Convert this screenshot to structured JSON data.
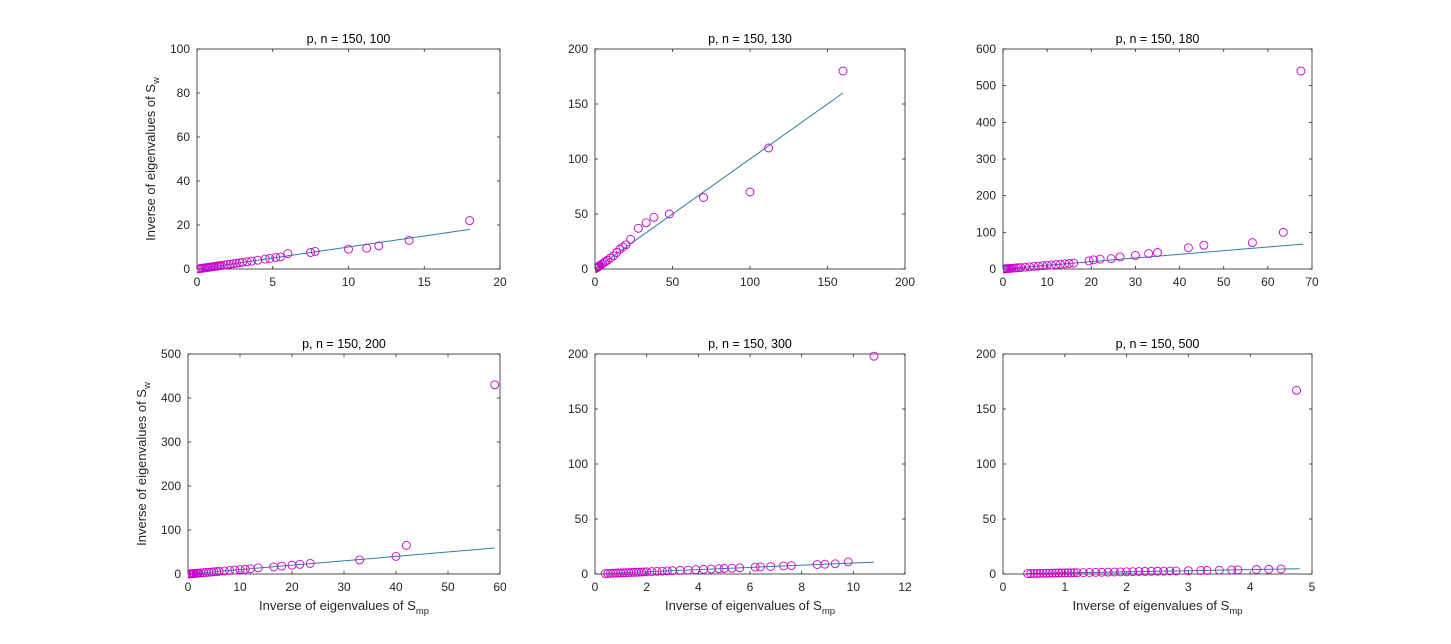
{
  "figure": {
    "xlabel_main": "Inverse of eigenvalues of S",
    "xlabel_sub": "mp",
    "ylabel_main": "Inverse of eigenvalues of S",
    "ylabel_sub": "w"
  },
  "colors": {
    "marker": "#cc00cc",
    "line": "#2a7fa0",
    "axis": "#262626"
  },
  "chart_data": [
    {
      "type": "scatter",
      "title": "p, n = 150, 100",
      "xlim": [
        0,
        20
      ],
      "ylim": [
        0,
        100
      ],
      "xticks": [
        0,
        5,
        10,
        15,
        20
      ],
      "yticks": [
        0,
        20,
        40,
        60,
        80,
        100
      ],
      "show_xlabel": false,
      "show_ylabel": true,
      "fit_line": {
        "x": [
          0,
          18
        ],
        "y": [
          0,
          18
        ]
      },
      "points": {
        "x": [
          0.1,
          0.2,
          0.3,
          0.4,
          0.5,
          0.6,
          0.7,
          0.8,
          0.9,
          1.0,
          1.1,
          1.2,
          1.3,
          1.4,
          1.5,
          1.6,
          1.8,
          2.0,
          2.2,
          2.4,
          2.6,
          2.8,
          3.0,
          3.3,
          3.6,
          4.0,
          4.5,
          4.8,
          5.2,
          5.5,
          6.0,
          7.5,
          7.8,
          10.0,
          11.2,
          12.0,
          14.0,
          18.0
        ],
        "y": [
          0.1,
          0.2,
          0.3,
          0.4,
          0.5,
          0.6,
          0.7,
          0.8,
          0.9,
          1.0,
          1.1,
          1.2,
          1.3,
          1.4,
          1.5,
          1.6,
          1.8,
          2.0,
          2.2,
          2.4,
          2.6,
          2.8,
          3.0,
          3.3,
          3.6,
          4.0,
          4.5,
          4.8,
          5.2,
          5.5,
          7.0,
          7.5,
          8.0,
          9.0,
          9.5,
          10.5,
          13.0,
          22.0
        ]
      }
    },
    {
      "type": "scatter",
      "title": "p, n = 150, 130",
      "xlim": [
        0,
        200
      ],
      "ylim": [
        0,
        200
      ],
      "xticks": [
        0,
        50,
        100,
        150,
        200
      ],
      "yticks": [
        0,
        50,
        100,
        150,
        200
      ],
      "show_xlabel": false,
      "show_ylabel": false,
      "fit_line": {
        "x": [
          0,
          160
        ],
        "y": [
          0,
          160
        ]
      },
      "points": {
        "x": [
          0.5,
          1,
          1.5,
          2,
          2.5,
          3,
          4,
          5,
          6,
          7,
          8,
          10,
          12,
          14,
          16,
          18,
          20,
          23,
          28,
          33,
          38,
          48,
          70,
          100,
          112,
          160
        ],
        "y": [
          0.5,
          1,
          1.5,
          2,
          2.5,
          3,
          4,
          5,
          6,
          7,
          8,
          10,
          12,
          15,
          18,
          20,
          22,
          27,
          37,
          42,
          47,
          50,
          65,
          70,
          110,
          180
        ]
      }
    },
    {
      "type": "scatter",
      "title": "p, n = 150, 180",
      "xlim": [
        0,
        70
      ],
      "ylim": [
        0,
        600
      ],
      "xticks": [
        0,
        10,
        20,
        30,
        40,
        50,
        60,
        70
      ],
      "yticks": [
        0,
        100,
        200,
        300,
        400,
        500,
        600
      ],
      "show_xlabel": false,
      "show_ylabel": false,
      "fit_line": {
        "x": [
          0,
          68
        ],
        "y": [
          0,
          68
        ]
      },
      "points": {
        "x": [
          0.2,
          0.4,
          0.6,
          0.8,
          1,
          1.3,
          1.6,
          2,
          2.5,
          3,
          3.5,
          4,
          5,
          6,
          7,
          8,
          9,
          10,
          11,
          12,
          13,
          14,
          15,
          16,
          19.5,
          20.5,
          22,
          24.5,
          26.5,
          30,
          33,
          35,
          42,
          45.5,
          56.5,
          63.5,
          67.5
        ],
        "y": [
          0.2,
          0.4,
          0.6,
          0.8,
          1,
          1.3,
          1.6,
          2,
          2.5,
          3,
          3.5,
          4,
          5,
          6,
          7,
          8,
          9,
          10,
          11,
          12,
          13,
          14,
          15,
          16,
          22,
          25,
          27,
          28,
          33,
          37,
          42,
          45,
          58,
          65,
          72,
          100,
          540
        ]
      }
    },
    {
      "type": "scatter",
      "title": "p, n = 150, 200",
      "xlim": [
        0,
        60
      ],
      "ylim": [
        0,
        500
      ],
      "xticks": [
        0,
        10,
        20,
        30,
        40,
        50,
        60
      ],
      "yticks": [
        0,
        100,
        200,
        300,
        400,
        500
      ],
      "show_xlabel": true,
      "show_ylabel": true,
      "fit_line": {
        "x": [
          0,
          59
        ],
        "y": [
          0,
          59
        ]
      },
      "points": {
        "x": [
          0.2,
          0.4,
          0.6,
          0.8,
          1,
          1.2,
          1.5,
          1.8,
          2,
          2.5,
          3,
          3.5,
          4,
          4.5,
          5,
          5.5,
          6,
          7,
          8,
          9,
          10,
          11,
          12,
          13.5,
          16.5,
          18,
          20,
          21.5,
          23.5,
          33,
          40,
          42,
          59
        ],
        "y": [
          0.2,
          0.4,
          0.6,
          0.8,
          1,
          1.2,
          1.5,
          1.8,
          2,
          2.5,
          3,
          3.5,
          4,
          4.5,
          5,
          5.5,
          6,
          7,
          8,
          9,
          10,
          11,
          12,
          14,
          16,
          18,
          20,
          22,
          24,
          32,
          40,
          65,
          430
        ]
      }
    },
    {
      "type": "scatter",
      "title": "p, n = 150, 300",
      "xlim": [
        0,
        12
      ],
      "ylim": [
        0,
        200
      ],
      "xticks": [
        0,
        2,
        4,
        6,
        8,
        10,
        12
      ],
      "yticks": [
        0,
        50,
        100,
        150,
        200
      ],
      "show_xlabel": true,
      "show_ylabel": false,
      "fit_line": {
        "x": [
          0.4,
          10.8
        ],
        "y": [
          0.4,
          10.8
        ]
      },
      "points": {
        "x": [
          0.4,
          0.5,
          0.6,
          0.7,
          0.8,
          0.9,
          1.0,
          1.1,
          1.2,
          1.3,
          1.4,
          1.5,
          1.6,
          1.7,
          1.8,
          1.9,
          2.0,
          2.2,
          2.4,
          2.6,
          2.8,
          3.0,
          3.3,
          3.6,
          3.9,
          4.2,
          4.5,
          4.8,
          5.0,
          5.3,
          5.6,
          6.2,
          6.4,
          6.8,
          7.3,
          7.6,
          8.6,
          8.9,
          9.3,
          9.8,
          10.8
        ],
        "y": [
          0.4,
          0.5,
          0.6,
          0.7,
          0.8,
          0.9,
          1.0,
          1.1,
          1.2,
          1.3,
          1.4,
          1.5,
          1.6,
          1.7,
          1.8,
          1.9,
          2.0,
          2.2,
          2.4,
          2.6,
          2.8,
          3.0,
          3.3,
          3.6,
          3.9,
          4.2,
          4.5,
          4.8,
          5.0,
          5.3,
          5.6,
          6.2,
          6.4,
          6.8,
          7.3,
          7.6,
          8.6,
          8.9,
          9.3,
          11.0,
          198.0
        ]
      }
    },
    {
      "type": "scatter",
      "title": "p, n = 150, 500",
      "xlim": [
        0,
        5
      ],
      "ylim": [
        0,
        200
      ],
      "xticks": [
        0,
        1,
        2,
        3,
        4,
        5
      ],
      "yticks": [
        0,
        50,
        100,
        150,
        200
      ],
      "show_xlabel": true,
      "show_ylabel": false,
      "fit_line": {
        "x": [
          0.4,
          4.8
        ],
        "y": [
          0.4,
          4.8
        ]
      },
      "points": {
        "x": [
          0.4,
          0.45,
          0.5,
          0.55,
          0.6,
          0.65,
          0.7,
          0.75,
          0.8,
          0.85,
          0.9,
          0.95,
          1.0,
          1.05,
          1.1,
          1.15,
          1.2,
          1.3,
          1.4,
          1.5,
          1.6,
          1.7,
          1.8,
          1.9,
          2.0,
          2.1,
          2.2,
          2.3,
          2.4,
          2.5,
          2.6,
          2.7,
          2.8,
          3.0,
          3.2,
          3.3,
          3.5,
          3.7,
          3.8,
          4.1,
          4.3,
          4.5,
          4.75
        ],
        "y": [
          0.4,
          0.45,
          0.5,
          0.55,
          0.6,
          0.65,
          0.7,
          0.75,
          0.8,
          0.85,
          0.9,
          0.95,
          1.0,
          1.05,
          1.1,
          1.15,
          1.2,
          1.3,
          1.4,
          1.5,
          1.6,
          1.7,
          1.8,
          1.9,
          2.0,
          2.1,
          2.2,
          2.3,
          2.4,
          2.5,
          2.6,
          2.7,
          2.8,
          3.0,
          3.2,
          3.3,
          3.5,
          3.7,
          3.8,
          4.1,
          4.3,
          4.6,
          167.0
        ]
      }
    }
  ]
}
